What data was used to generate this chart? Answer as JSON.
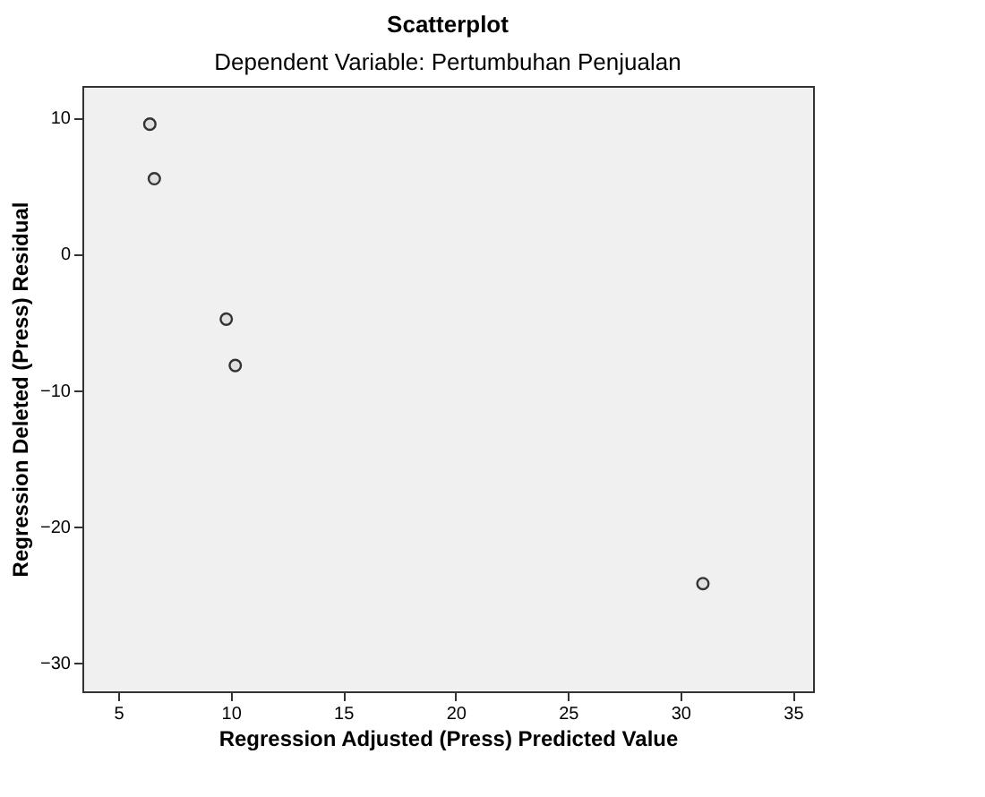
{
  "chart_data": {
    "type": "scatter",
    "title": "Scatterplot",
    "subtitle": "Dependent Variable: Pertumbuhan Penjualan",
    "xlabel": "Regression Adjusted (Press) Predicted Value",
    "ylabel": "Regression Deleted (Press) Residual",
    "x": [
      6.4,
      6.6,
      9.8,
      10.2,
      31.0
    ],
    "series": [
      {
        "color": "#333333",
        "values": [
          9.5,
          5.5,
          -4.8,
          -8.2,
          -24.2
        ]
      }
    ],
    "xlim": [
      3.4,
      35.9
    ],
    "xticks": [
      5,
      10,
      15,
      20,
      25,
      30,
      35
    ],
    "ylim": [
      -32.1,
      12.3
    ],
    "yticks": [
      -30,
      -20,
      -10,
      0,
      10
    ],
    "grid": false,
    "marker": "circle"
  }
}
